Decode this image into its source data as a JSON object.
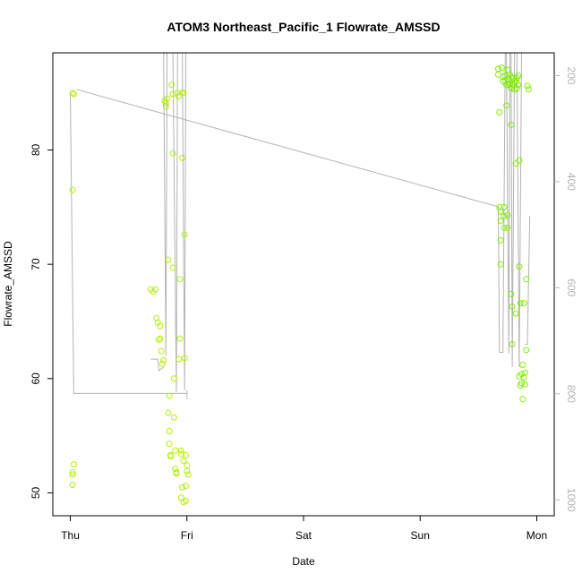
{
  "chart_data": {
    "type": "scatter",
    "title": "ATOM3 Northeast_Pacific_1 Flowrate_AMSSD",
    "xlabel": "Date",
    "ylabel": "Flowrate_AMSSD",
    "x_ticks": [
      "Thu",
      "Fri",
      "Sat",
      "Sun",
      "Mon"
    ],
    "xlim_days": [
      -0.15,
      4.15
    ],
    "ylim": [
      48,
      88.5
    ],
    "y_ticks": [
      50,
      60,
      70,
      80
    ],
    "y2lim": [
      1030,
      157
    ],
    "y2_ticks": [
      200,
      400,
      600,
      800,
      1000
    ],
    "grid": false,
    "point_colors": [
      "#b3f000",
      "#80ee00"
    ],
    "line_color": "#b3b3b3",
    "points": [
      [
        0.02,
        85
      ],
      [
        0.03,
        84.9
      ],
      [
        0.02,
        76.5
      ],
      [
        0.02,
        51.6
      ],
      [
        0.02,
        51.8
      ],
      [
        0.02,
        50.7
      ],
      [
        0.03,
        52.5
      ],
      [
        0.69,
        67.8
      ],
      [
        0.71,
        67.6
      ],
      [
        0.73,
        67.8
      ],
      [
        0.74,
        65.3
      ],
      [
        0.75,
        64.9
      ],
      [
        0.76,
        63.4
      ],
      [
        0.77,
        64.6
      ],
      [
        0.77,
        63.5
      ],
      [
        0.78,
        62.4
      ],
      [
        0.79,
        61.3
      ],
      [
        0.8,
        61.6
      ],
      [
        0.81,
        84.3
      ],
      [
        0.82,
        83.8
      ],
      [
        0.82,
        84.1
      ],
      [
        0.83,
        84.5
      ],
      [
        0.84,
        70.4
      ],
      [
        0.84,
        57
      ],
      [
        0.85,
        58.5
      ],
      [
        0.85,
        55.4
      ],
      [
        0.85,
        54.3
      ],
      [
        0.86,
        53.2
      ],
      [
        0.86,
        53.3
      ],
      [
        0.87,
        85.7
      ],
      [
        0.88,
        84.9
      ],
      [
        0.88,
        79.7
      ],
      [
        0.88,
        69.7
      ],
      [
        0.89,
        60
      ],
      [
        0.89,
        56.6
      ],
      [
        0.9,
        53.7
      ],
      [
        0.9,
        52.1
      ],
      [
        0.91,
        51.7
      ],
      [
        0.91,
        51.8
      ],
      [
        0.92,
        85
      ],
      [
        0.93,
        84.7
      ],
      [
        0.93,
        61.7
      ],
      [
        0.94,
        68.7
      ],
      [
        0.94,
        63.5
      ],
      [
        0.95,
        53.7
      ],
      [
        0.95,
        53.4
      ],
      [
        0.95,
        49.6
      ],
      [
        0.96,
        85
      ],
      [
        0.96,
        79.3
      ],
      [
        0.96,
        50.5
      ],
      [
        0.97,
        85
      ],
      [
        0.97,
        52.8
      ],
      [
        0.97,
        49.2
      ],
      [
        0.98,
        72.6
      ],
      [
        0.98,
        61.8
      ],
      [
        0.99,
        53.3
      ],
      [
        0.99,
        50.6
      ],
      [
        0.99,
        49.3
      ],
      [
        1.0,
        52.4
      ],
      [
        1.0,
        51.9
      ],
      [
        1.01,
        51.6
      ],
      [
        3.67,
        87.1
      ],
      [
        3.67,
        86.6
      ],
      [
        3.68,
        83.3
      ],
      [
        3.68,
        75
      ],
      [
        3.69,
        74.6
      ],
      [
        3.69,
        73.8
      ],
      [
        3.69,
        72.1
      ],
      [
        3.69,
        70
      ],
      [
        3.7,
        87.2
      ],
      [
        3.71,
        86.4
      ],
      [
        3.71,
        86
      ],
      [
        3.72,
        75
      ],
      [
        3.72,
        74.2
      ],
      [
        3.72,
        73.2
      ],
      [
        3.73,
        86.5
      ],
      [
        3.73,
        86.1
      ],
      [
        3.74,
        85.7
      ],
      [
        3.74,
        83.9
      ],
      [
        3.75,
        87
      ],
      [
        3.75,
        74.3
      ],
      [
        3.75,
        73.2
      ],
      [
        3.76,
        86.2
      ],
      [
        3.76,
        85.7
      ],
      [
        3.77,
        86.6
      ],
      [
        3.77,
        85.8
      ],
      [
        3.78,
        86.4
      ],
      [
        3.78,
        85.4
      ],
      [
        3.78,
        82.2
      ],
      [
        3.78,
        67.4
      ],
      [
        3.79,
        63
      ],
      [
        3.79,
        66.3
      ],
      [
        3.8,
        86.3
      ],
      [
        3.8,
        85.7
      ],
      [
        3.81,
        85.9
      ],
      [
        3.81,
        85.3
      ],
      [
        3.82,
        86
      ],
      [
        3.82,
        78.8
      ],
      [
        3.82,
        65.7
      ],
      [
        3.83,
        86.3
      ],
      [
        3.83,
        85.4
      ],
      [
        3.84,
        86.5
      ],
      [
        3.84,
        85.7
      ],
      [
        3.85,
        79.1
      ],
      [
        3.85,
        69.8
      ],
      [
        3.85,
        60.2
      ],
      [
        3.86,
        59.4
      ],
      [
        3.86,
        66.6
      ],
      [
        3.87,
        60.4
      ],
      [
        3.87,
        59.6
      ],
      [
        3.88,
        58.2
      ],
      [
        3.88,
        61.2
      ],
      [
        3.89,
        60.1
      ],
      [
        3.89,
        66.6
      ],
      [
        3.9,
        59.5
      ],
      [
        3.9,
        60.5
      ],
      [
        3.91,
        62.5
      ],
      [
        3.91,
        68.7
      ],
      [
        3.92,
        85.6
      ],
      [
        3.93,
        85.3
      ]
    ],
    "line_paths": [
      [
        [
          0.0,
          85
        ],
        [
          0.03,
          58.7
        ],
        [
          1.0,
          58.7
        ]
      ],
      [
        [
          0.05,
          85.3
        ],
        [
          3.68,
          75
        ]
      ],
      [
        [
          0.69,
          61.7
        ],
        [
          0.75,
          61.7
        ],
        [
          0.76,
          60.7
        ],
        [
          0.8,
          61
        ]
      ],
      [
        [
          0.8,
          88.5
        ],
        [
          0.82,
          62
        ],
        [
          0.83,
          88.5
        ]
      ],
      [
        [
          0.88,
          88.5
        ],
        [
          0.91,
          58.8
        ],
        [
          0.92,
          88.5
        ]
      ],
      [
        [
          0.96,
          88.5
        ],
        [
          0.98,
          59
        ],
        [
          0.99,
          88.5
        ]
      ],
      [
        [
          1.0,
          59
        ],
        [
          1.0,
          58.2
        ]
      ],
      [
        [
          3.67,
          75
        ],
        [
          3.68,
          62.3
        ],
        [
          3.71,
          62.3
        ],
        [
          3.73,
          88.5
        ]
      ],
      [
        [
          3.74,
          88.5
        ],
        [
          3.76,
          62.2
        ],
        [
          3.77,
          88.5
        ]
      ],
      [
        [
          3.78,
          88.5
        ],
        [
          3.79,
          61
        ],
        [
          3.81,
          88.5
        ]
      ],
      [
        [
          3.83,
          88.5
        ],
        [
          3.85,
          61
        ],
        [
          3.87,
          88.5
        ]
      ],
      [
        [
          3.9,
          63
        ],
        [
          3.92,
          63
        ],
        [
          3.94,
          74.2
        ]
      ]
    ]
  }
}
